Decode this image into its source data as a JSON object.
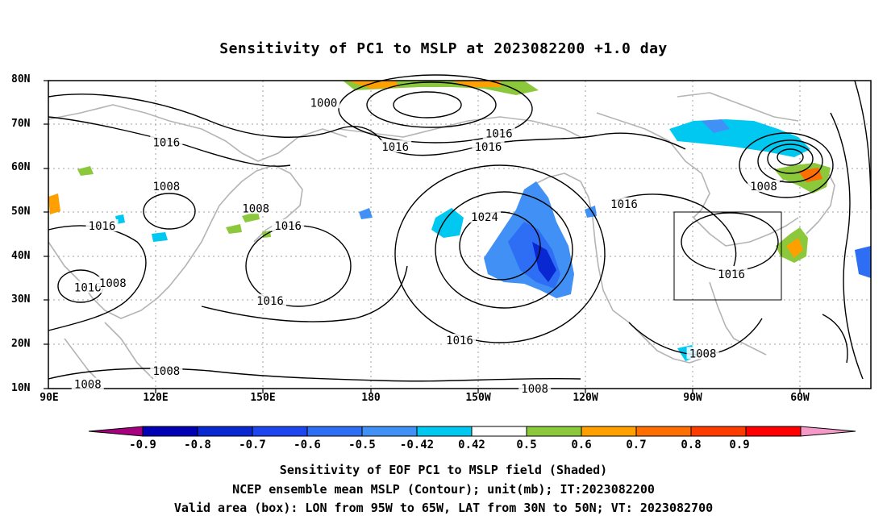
{
  "title": "Sensitivity of PC1 to MSLP at 2023082200 +1.0 day",
  "lat_labels": [
    "80N",
    "70N",
    "60N",
    "50N",
    "40N",
    "30N",
    "20N",
    "10N"
  ],
  "lon_labels": [
    "90E",
    "120E",
    "150E",
    "180",
    "150W",
    "120W",
    "90W",
    "60W"
  ],
  "contour_labels": [
    {
      "text": "1000",
      "lon": 167,
      "lat": 75
    },
    {
      "text": "1016",
      "lon": 216,
      "lat": 68
    },
    {
      "text": "1016",
      "lon": 123,
      "lat": 66
    },
    {
      "text": "1016",
      "lon": 187,
      "lat": 65
    },
    {
      "text": "1016",
      "lon": 213,
      "lat": 65
    },
    {
      "text": "1016",
      "lon": 251,
      "lat": 52
    },
    {
      "text": "1008",
      "lon": 123,
      "lat": 56
    },
    {
      "text": "1008",
      "lon": 148,
      "lat": 51
    },
    {
      "text": "1008",
      "lon": 290,
      "lat": 56
    },
    {
      "text": "1016",
      "lon": 105,
      "lat": 47
    },
    {
      "text": "1016",
      "lon": 157,
      "lat": 47
    },
    {
      "text": "1024",
      "lon": 212,
      "lat": 49
    },
    {
      "text": "1016",
      "lon": 281,
      "lat": 36
    },
    {
      "text": "1016",
      "lon": 101,
      "lat": 33
    },
    {
      "text": "1008",
      "lon": 108,
      "lat": 34
    },
    {
      "text": "1016",
      "lon": 152,
      "lat": 30
    },
    {
      "text": "1016",
      "lon": 205,
      "lat": 21
    },
    {
      "text": "1008",
      "lon": 101,
      "lat": 11
    },
    {
      "text": "1008",
      "lon": 123,
      "lat": 14
    },
    {
      "text": "1008",
      "lon": 273,
      "lat": 18
    },
    {
      "text": "1008",
      "lon": 226,
      "lat": 10
    }
  ],
  "valid_box": {
    "lon_min": 265,
    "lon_max": 295,
    "lat_min": 30,
    "lat_max": 50
  },
  "colorbar": {
    "labels": [
      "-0.9",
      "-0.8",
      "-0.7",
      "-0.6",
      "-0.5",
      "-0.42",
      "0.42",
      "0.5",
      "0.6",
      "0.7",
      "0.8",
      "0.9"
    ],
    "colors": [
      "#a6007e",
      "#0000b4",
      "#0a28d2",
      "#1e46ef",
      "#2e6ef5",
      "#4090f5",
      "#00c8f0",
      "#ffffff",
      "#8cc83c",
      "#ffa000",
      "#ff6e00",
      "#ff3c00",
      "#ff0000",
      "#f59ac8"
    ]
  },
  "captions": [
    "Sensitivity of EOF PC1 to MSLP field (Shaded)",
    "NCEP ensemble mean MSLP (Contour); unit(mb); IT:2023082200",
    "Valid area (box): LON from 95W to 65W, LAT from 30N to 50N; VT: 2023082700"
  ]
}
